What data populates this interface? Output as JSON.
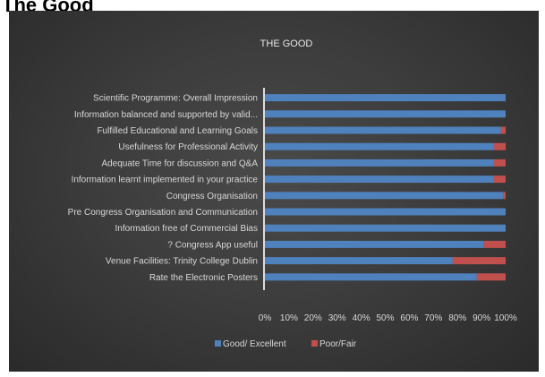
{
  "page": {
    "heading": "The Good"
  },
  "colors": {
    "good": "#4f81bd",
    "poor": "#c0504d",
    "axis": "#dcdcdc",
    "text": "#d8d8d8"
  },
  "chart_data": {
    "type": "bar",
    "orientation": "horizontal",
    "stacked": "percent",
    "title": "THE GOOD",
    "xlabel": "",
    "ylabel": "",
    "xlim": [
      0,
      100
    ],
    "x_ticks": [
      "0%",
      "10%",
      "20%",
      "30%",
      "40%",
      "50%",
      "60%",
      "70%",
      "80%",
      "90%",
      "100%"
    ],
    "grid": false,
    "legend_position": "bottom",
    "categories": [
      "Scientific Programme: Overall Impression",
      "Information balanced and supported by valid...",
      "Fulfilled Educational and Learning Goals",
      "Usefulness for Professional Activity",
      "Adequate Time for discussion and Q&A",
      "Information learnt implemented in your practice",
      "Congress Organisation",
      "Pre Congress Organisation and Communication",
      "Information free of Commercial Bias",
      "? Congress App useful",
      "Venue Facilities: Trinity College Dublin",
      "Rate the Electronic Posters"
    ],
    "series": [
      {
        "name": "Good/ Excellent",
        "values": [
          100,
          100,
          98,
          95,
          95,
          95,
          99,
          100,
          100,
          91,
          78,
          88
        ]
      },
      {
        "name": "Poor/Fair",
        "values": [
          0,
          0,
          2,
          5,
          5,
          5,
          1,
          0,
          0,
          9,
          22,
          12
        ]
      }
    ]
  }
}
